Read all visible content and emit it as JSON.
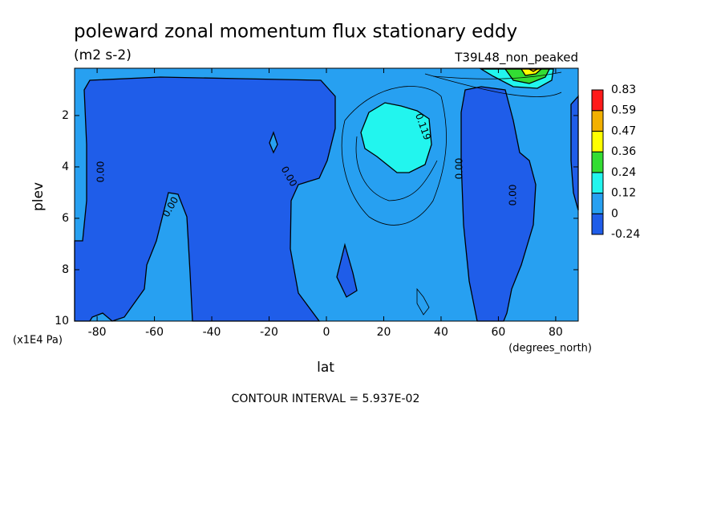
{
  "chart_data": {
    "type": "contour",
    "title": "poleward zonal momentum flux stationary eddy",
    "subtitle": "(m2 s-2)",
    "run_label": "T39L48_non_peaked",
    "x_label": "lat",
    "x_units": "(degrees_north)",
    "y_label": "plev",
    "y_units": "(x1E4 Pa)",
    "footnote": "CONTOUR INTERVAL = 5.937E-02",
    "xlim": [
      -87.86,
      87.86
    ],
    "xticks": [
      -80,
      -60,
      -40,
      -20,
      0,
      20,
      40,
      60,
      80
    ],
    "ylim": [
      10,
      0.16
    ],
    "yticks": [
      2,
      4,
      6,
      8,
      10
    ],
    "levels": [
      -0.24,
      0,
      0.12,
      0.24,
      0.36,
      0.47,
      0.59,
      0.83
    ],
    "colors": [
      "#1f5de9",
      "#27a0f1",
      "#22f5ee",
      "#33dd33",
      "#ffff00",
      "#f2b000",
      "#ff1a1a"
    ],
    "contour_labels": [
      "0.00",
      "0.00",
      "0.00",
      "0.00",
      "0.00",
      "0.119"
    ]
  }
}
